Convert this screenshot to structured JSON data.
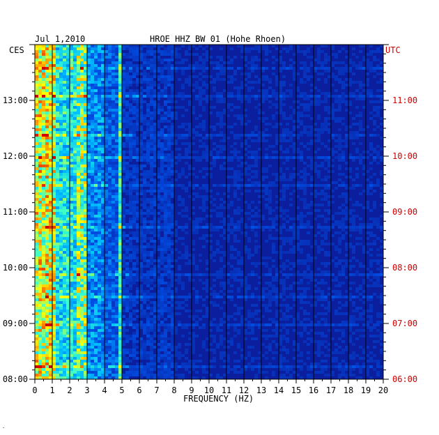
{
  "chart_data": {
    "type": "heatmap",
    "date": "Jul 1,2010",
    "title": "HROE HHZ BW 01 (Hohe Rhoen)",
    "xlabel": "FREQUENCY (HZ)",
    "left_tz": "CES",
    "right_tz": "UTC",
    "xlim": [
      0,
      20
    ],
    "x_ticks": [
      "0",
      "1",
      "2",
      "3",
      "4",
      "5",
      "6",
      "7",
      "8",
      "9",
      "10",
      "11",
      "12",
      "13",
      "14",
      "15",
      "16",
      "17",
      "18",
      "19",
      "20"
    ],
    "left_time_ticks": [
      {
        "label": "13:00",
        "hours_from_bottom": 5
      },
      {
        "label": "12:00",
        "hours_from_bottom": 4
      },
      {
        "label": "11:00",
        "hours_from_bottom": 3
      },
      {
        "label": "10:00",
        "hours_from_bottom": 2
      },
      {
        "label": "09:00",
        "hours_from_bottom": 1
      },
      {
        "label": "08:00",
        "hours_from_bottom": 0
      }
    ],
    "right_time_ticks": [
      {
        "label": "11:00",
        "hours_from_bottom": 5
      },
      {
        "label": "10:00",
        "hours_from_bottom": 4
      },
      {
        "label": "09:00",
        "hours_from_bottom": 3
      },
      {
        "label": "08:00",
        "hours_from_bottom": 2
      },
      {
        "label": "07:00",
        "hours_from_bottom": 1
      },
      {
        "label": "06:00",
        "hours_from_bottom": 0
      }
    ],
    "time_span_hours": 6,
    "colors": {
      "background": "#0b1e9e",
      "frame": "#000000",
      "left_labels": "#000000",
      "right_labels": "#cc0000",
      "grid": "#000000"
    }
  }
}
